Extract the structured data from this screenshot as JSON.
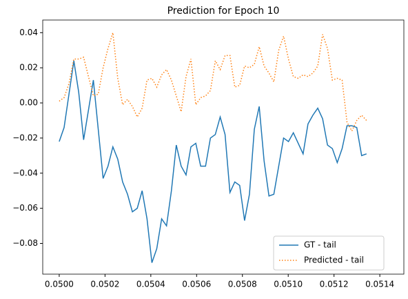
{
  "chart_data": {
    "type": "line",
    "title": "Prediction for Epoch 10",
    "x": [
      0.05,
      0.0500213,
      0.0500426,
      0.0500639,
      0.0500852,
      0.0501065,
      0.0501278,
      0.0501491,
      0.0501704,
      0.0501917,
      0.050213,
      0.0502343,
      0.0502556,
      0.0502769,
      0.0502982,
      0.0503195,
      0.0503408,
      0.0503621,
      0.0503834,
      0.0504047,
      0.050426,
      0.0504473,
      0.0504686,
      0.0504899,
      0.0505112,
      0.0505325,
      0.0505538,
      0.0505751,
      0.0505964,
      0.0506177,
      0.050639,
      0.0506603,
      0.0506816,
      0.0507029,
      0.0507242,
      0.0507455,
      0.0507668,
      0.0507881,
      0.0508094,
      0.0508307,
      0.050852,
      0.0508733,
      0.0508946,
      0.0509159,
      0.0509372,
      0.0509585,
      0.0509798,
      0.0510011,
      0.0510224,
      0.0510437,
      0.051065,
      0.0510863,
      0.0511076,
      0.0511289,
      0.0511502,
      0.0511715,
      0.0511928,
      0.0512141,
      0.0512354,
      0.0512567,
      0.051278,
      0.0512993,
      0.0513206,
      0.0513419
    ],
    "series": [
      {
        "name": "GT - tail",
        "color": "#1f77b4",
        "style": "solid",
        "values": [
          -0.022,
          -0.014,
          0.005,
          0.024,
          0.006,
          -0.021,
          -0.004,
          0.013,
          -0.015,
          -0.043,
          -0.036,
          -0.025,
          -0.032,
          -0.045,
          -0.052,
          -0.062,
          -0.06,
          -0.05,
          -0.066,
          -0.091,
          -0.083,
          -0.066,
          -0.07,
          -0.05,
          -0.024,
          -0.036,
          -0.041,
          -0.025,
          -0.023,
          -0.036,
          -0.036,
          -0.02,
          -0.018,
          -0.008,
          -0.018,
          -0.051,
          -0.045,
          -0.047,
          -0.067,
          -0.052,
          -0.015,
          -0.002,
          -0.033,
          -0.053,
          -0.052,
          -0.036,
          -0.02,
          -0.022,
          -0.017,
          -0.023,
          -0.029,
          -0.012,
          -0.007,
          -0.003,
          -0.009,
          -0.024,
          -0.026,
          -0.034,
          -0.026,
          -0.013,
          -0.013,
          -0.014,
          -0.03,
          -0.029
        ]
      },
      {
        "name": "Predicted - tail",
        "color": "#ff7f0e",
        "style": "dotted",
        "values": [
          0.001,
          0.003,
          0.011,
          0.025,
          0.025,
          0.026,
          0.015,
          0.004,
          0.005,
          0.02,
          0.031,
          0.04,
          0.014,
          -0.001,
          0.002,
          -0.002,
          -0.008,
          -0.003,
          0.013,
          0.014,
          0.009,
          0.016,
          0.019,
          0.013,
          0.004,
          -0.005,
          0.015,
          0.025,
          -0.001,
          0.003,
          0.004,
          0.007,
          0.024,
          0.019,
          0.027,
          0.027,
          0.009,
          0.01,
          0.021,
          0.02,
          0.022,
          0.032,
          0.021,
          0.017,
          0.012,
          0.03,
          0.038,
          0.025,
          0.015,
          0.014,
          0.016,
          0.015,
          0.017,
          0.021,
          0.039,
          0.031,
          0.013,
          0.014,
          0.013,
          -0.011,
          -0.016,
          -0.01,
          -0.007,
          -0.01
        ]
      }
    ],
    "xlim": [
      0.049928,
      0.051505
    ],
    "ylim": [
      -0.0975,
      0.0472
    ],
    "xticks": [
      {
        "value": 0.05,
        "label": "0.0500"
      },
      0.0502,
      0.0504,
      0.0506,
      0.0508,
      {
        "value": 0.051,
        "label": "0.0510"
      },
      0.0512,
      0.0514
    ],
    "yticks": [
      {
        "value": -0.08,
        "label": "−0.08"
      },
      {
        "value": -0.06,
        "label": "−0.06"
      },
      {
        "value": -0.04,
        "label": "−0.04"
      },
      {
        "value": -0.02,
        "label": "−0.02"
      },
      {
        "value": 0,
        "label": "0.00"
      },
      0.02,
      0.04
    ],
    "legend": "lower right",
    "grid": false
  }
}
